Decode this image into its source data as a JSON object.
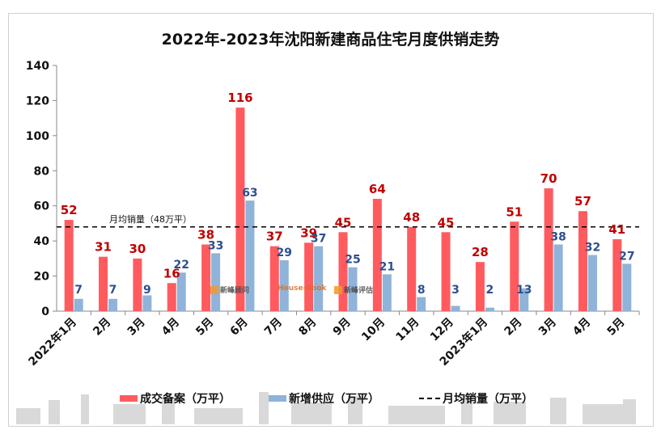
{
  "chart_data": {
    "type": "bar",
    "title": "2022年-2023年沈阳新建商品住宅月度供销走势",
    "categories": [
      "2022年1月",
      "2月",
      "3月",
      "4月",
      "5月",
      "6月",
      "7月",
      "8月",
      "9月",
      "10月",
      "11月",
      "12月",
      "2023年1月",
      "2月",
      "3月",
      "4月",
      "5月"
    ],
    "series": [
      {
        "name": "成交备案（万平）",
        "color": "#ff5b5f",
        "label_color": "#c00000",
        "values": [
          52,
          31,
          30,
          16,
          38,
          116,
          37,
          39,
          45,
          64,
          48,
          45,
          28,
          51,
          70,
          57,
          41
        ]
      },
      {
        "name": "新增供应（万平）",
        "color": "#8fb3d9",
        "label_color": "#2e4f8f",
        "values": [
          7,
          7,
          9,
          22,
          33,
          63,
          29,
          37,
          25,
          21,
          8,
          3,
          2,
          13,
          38,
          32,
          27
        ]
      }
    ],
    "reference_line": {
      "name": "月均销量（万平）",
      "value": 48,
      "label": "月均销量（48万平）",
      "style": "dashed",
      "color": "#000000"
    },
    "ylim": [
      0,
      140
    ],
    "yticks": [
      0,
      20,
      40,
      60,
      80,
      100,
      120,
      140
    ],
    "xlabel": "",
    "ylabel": "",
    "grid": false,
    "legend_position": "bottom"
  },
  "watermarks": [
    "新峰顾问",
    "House-Book",
    "新峰评估"
  ]
}
